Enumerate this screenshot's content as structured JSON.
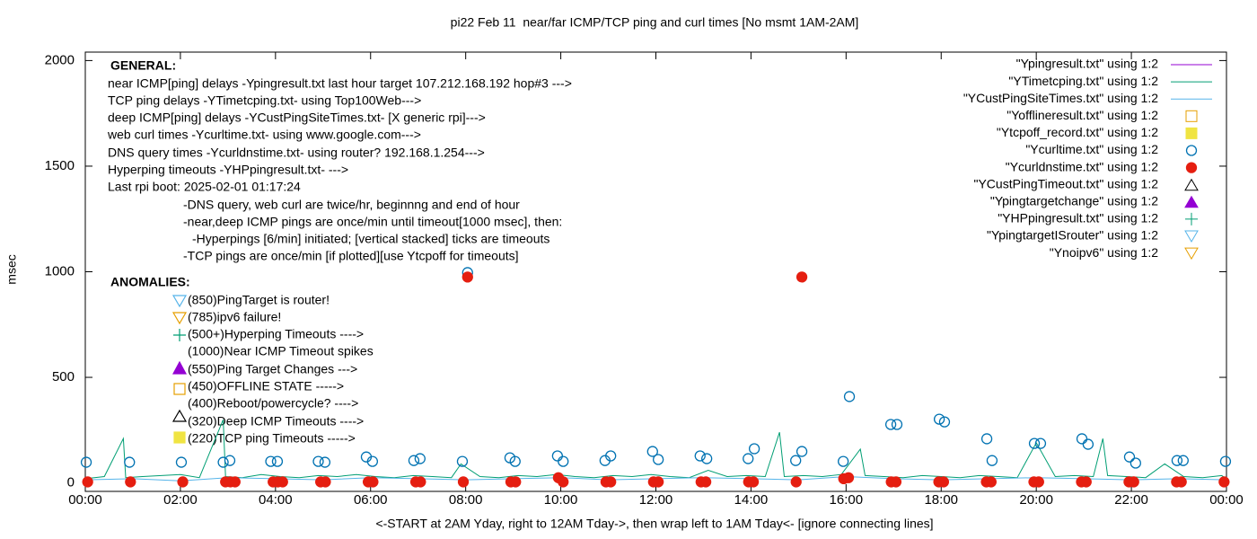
{
  "chart_data": {
    "type": "line",
    "title": "pi22 Feb 11  near/far ICMP/TCP ping and curl times [No msmt 1AM-2AM]",
    "xlabel": "<-START at 2AM Yday, right to 12AM Tday->, then wrap left to 1AM Tday<- [ignore connecting lines]",
    "ylabel": "msec",
    "xlim": [
      0,
      24
    ],
    "xticks": [
      {
        "value": 0,
        "label": "00:00"
      },
      {
        "value": 2,
        "label": "02:00"
      },
      {
        "value": 4,
        "label": "04:00"
      },
      {
        "value": 6,
        "label": "06:00"
      },
      {
        "value": 8,
        "label": "08:00"
      },
      {
        "value": 10,
        "label": "10:00"
      },
      {
        "value": 12,
        "label": "12:00"
      },
      {
        "value": 14,
        "label": "14:00"
      },
      {
        "value": 16,
        "label": "16:00"
      },
      {
        "value": 18,
        "label": "18:00"
      },
      {
        "value": 20,
        "label": "20:00"
      },
      {
        "value": 22,
        "label": "22:00"
      },
      {
        "value": 24,
        "label": "00:00"
      }
    ],
    "ylim": [
      -40,
      2040
    ],
    "yticks": [
      0,
      500,
      1000,
      1500,
      2000
    ],
    "legend": "top-right",
    "annotations": [
      "GENERAL:",
      "near ICMP[ping] delays -Ypingresult.txt last hour target 107.212.168.192 hop#3 --->",
      "TCP ping delays -YTimetcping.txt- using Top100Web--->",
      "deep ICMP[ping] delays -YCustPingSiteTimes.txt- [X generic rpi]--->",
      "web curl times -Ycurltime.txt- using www.google.com--->",
      "DNS query times -Ycurldnstime.txt- using router? 192.168.1.254--->",
      "Hyperping timeouts -YHPpingresult.txt- --->",
      "Last rpi boot: 2025-02-01 01:17:24",
      "-DNS query, web curl are twice/hr, beginnng and end of hour",
      "-near,deep ICMP pings are once/min until timeout[1000 msec], then:",
      "-Hyperpings [6/min] initiated; [vertical stacked] ticks are timeouts",
      "-TCP pings are once/min [if plotted][use Ytcpoff for timeouts]",
      "ANOMALIES:",
      "(850)PingTarget is router!",
      "(785)ipv6 failure!",
      "(500+)Hyperping Timeouts ---->",
      "(1000)Near ICMP Timeout spikes",
      "(550)Ping Target Changes --->",
      "(450)OFFLINE STATE ----->",
      "(400)Reboot/powercycle? ---->",
      "(320)Deep ICMP Timeouts ---->",
      "(220)TCP ping Timeouts ----->"
    ],
    "series": [
      {
        "name": "\"Ypingresult.txt\" using 1:2",
        "color": "#9400d3",
        "marker": "line",
        "x": [],
        "values": []
      },
      {
        "name": "\"YTimetcping.txt\" using 1:2",
        "color": "#009e73",
        "marker": "line",
        "x": [
          0,
          0.4,
          0.8,
          0.85,
          1.2,
          1.6,
          2.0,
          2.4,
          2.9,
          2.95,
          3.3,
          3.7,
          4.1,
          4.5,
          4.9,
          5.3,
          5.7,
          6.1,
          6.5,
          6.9,
          7.3,
          7.7,
          7.9,
          8.3,
          8.7,
          9.1,
          9.5,
          9.9,
          10.3,
          10.7,
          11.1,
          11.5,
          11.9,
          12.3,
          12.7,
          13.1,
          13.5,
          13.9,
          14.3,
          14.6,
          14.7,
          15.1,
          15.5,
          15.9,
          16.3,
          16.4,
          16.8,
          17.2,
          17.6,
          18.0,
          18.4,
          18.8,
          19.2,
          19.6,
          20.0,
          20.4,
          20.8,
          21.2,
          21.4,
          21.5,
          21.9,
          22.3,
          22.7,
          23.1,
          23.5,
          23.9,
          24
        ],
        "values": [
          20,
          30,
          210,
          25,
          30,
          35,
          40,
          25,
          300,
          30,
          25,
          40,
          30,
          25,
          35,
          30,
          40,
          30,
          25,
          35,
          30,
          25,
          90,
          30,
          25,
          35,
          30,
          40,
          30,
          25,
          35,
          30,
          40,
          30,
          25,
          60,
          30,
          35,
          30,
          240,
          30,
          35,
          30,
          40,
          160,
          35,
          30,
          25,
          35,
          30,
          25,
          35,
          30,
          25,
          190,
          30,
          35,
          30,
          210,
          35,
          30,
          25,
          90,
          30,
          25,
          35,
          20
        ]
      },
      {
        "name": "\"YCustPingSiteTimes.txt\" using 1:2",
        "color": "#56b4e9",
        "marker": "line",
        "x": [
          0,
          1,
          2,
          3,
          4,
          5,
          6,
          7,
          8,
          9,
          10,
          11,
          12,
          13,
          14,
          15,
          16,
          17,
          18,
          19,
          20,
          21,
          22,
          23,
          24
        ],
        "values": [
          15,
          20,
          10,
          25,
          20,
          15,
          25,
          20,
          15,
          20,
          25,
          15,
          20,
          25,
          20,
          15,
          30,
          20,
          15,
          20,
          25,
          20,
          15,
          20,
          15
        ]
      },
      {
        "name": "\"Yofflineresult.txt\" using 1:2",
        "color": "#e69f00",
        "marker": "open-square",
        "x": [],
        "values": []
      },
      {
        "name": "\"Ytcpoff_record.txt\" using 1:2",
        "color": "#f0e442",
        "marker": "filled-square",
        "x": [],
        "values": []
      },
      {
        "name": "\"Ycurltime.txt\" using 1:2",
        "color": "#0072b2",
        "marker": "open-circle",
        "x": [
          0.02,
          0.93,
          2.02,
          2.9,
          3.04,
          3.9,
          4.04,
          4.9,
          5.04,
          5.91,
          6.04,
          6.91,
          7.04,
          7.93,
          8.04,
          8.93,
          9.04,
          9.93,
          10.05,
          10.93,
          11.05,
          11.93,
          12.05,
          12.93,
          13.07,
          13.94,
          14.07,
          14.94,
          15.07,
          15.94,
          16.07,
          16.94,
          17.07,
          17.96,
          18.07,
          18.96,
          19.07,
          19.96,
          20.09,
          20.96,
          21.09,
          21.96,
          22.09,
          22.96,
          23.09,
          23.98
        ],
        "values": [
          98,
          98,
          98,
          98,
          106,
          102,
          102,
          102,
          98,
          123,
          102,
          106,
          115,
          102,
          996,
          119,
          102,
          128,
          102,
          106,
          128,
          149,
          111,
          128,
          115,
          115,
          162,
          106,
          149,
          102,
          409,
          277,
          277,
          302,
          289,
          209,
          106,
          187,
          187,
          209,
          183,
          123,
          94,
          106,
          106,
          102
        ]
      },
      {
        "name": "\"Ycurldnstime.txt\" using 1:2",
        "color": "#e51e10",
        "marker": "filled-circle",
        "x": [
          0.05,
          0.95,
          2.05,
          2.95,
          3.05,
          3.15,
          3.95,
          4.05,
          4.15,
          4.95,
          5.05,
          5.95,
          6.05,
          6.95,
          7.05,
          7.95,
          8.04,
          8.95,
          9.05,
          9.95,
          10.05,
          10.95,
          11.05,
          11.95,
          12.05,
          12.95,
          13.05,
          13.95,
          14.05,
          14.95,
          15.07,
          15.95,
          16.05,
          16.95,
          17.05,
          17.95,
          18.05,
          18.95,
          19.05,
          19.95,
          20.05,
          20.95,
          21.05,
          21.95,
          22.05,
          22.95,
          23.05,
          23.95
        ],
        "values": [
          5,
          5,
          5,
          5,
          5,
          5,
          5,
          5,
          5,
          5,
          5,
          5,
          5,
          5,
          5,
          5,
          975,
          5,
          5,
          25,
          5,
          5,
          5,
          5,
          5,
          5,
          5,
          5,
          5,
          5,
          975,
          20,
          25,
          5,
          5,
          5,
          5,
          5,
          5,
          5,
          5,
          5,
          5,
          5,
          5,
          5,
          5,
          5
        ]
      },
      {
        "name": "\"YCustPingTimeout.txt\" using 1:2",
        "color": "#000000",
        "marker": "open-triangle",
        "x": [],
        "values": []
      },
      {
        "name": "\"Ypingtargetchange\" using 1:2",
        "color": "#9400d3",
        "marker": "filled-triangle",
        "x": [],
        "values": []
      },
      {
        "name": "\"YHPpingresult.txt\" using 1:2",
        "color": "#009e73",
        "marker": "plus",
        "x": [],
        "values": []
      },
      {
        "name": "\"YpingtargetISrouter\" using 1:2",
        "color": "#56b4e9",
        "marker": "open-down-triangle",
        "x": [],
        "values": []
      },
      {
        "name": "\"Ynoipv6\" using 1:2",
        "color": "#e69f00",
        "marker": "open-down-triangle",
        "x": [],
        "values": []
      }
    ]
  }
}
